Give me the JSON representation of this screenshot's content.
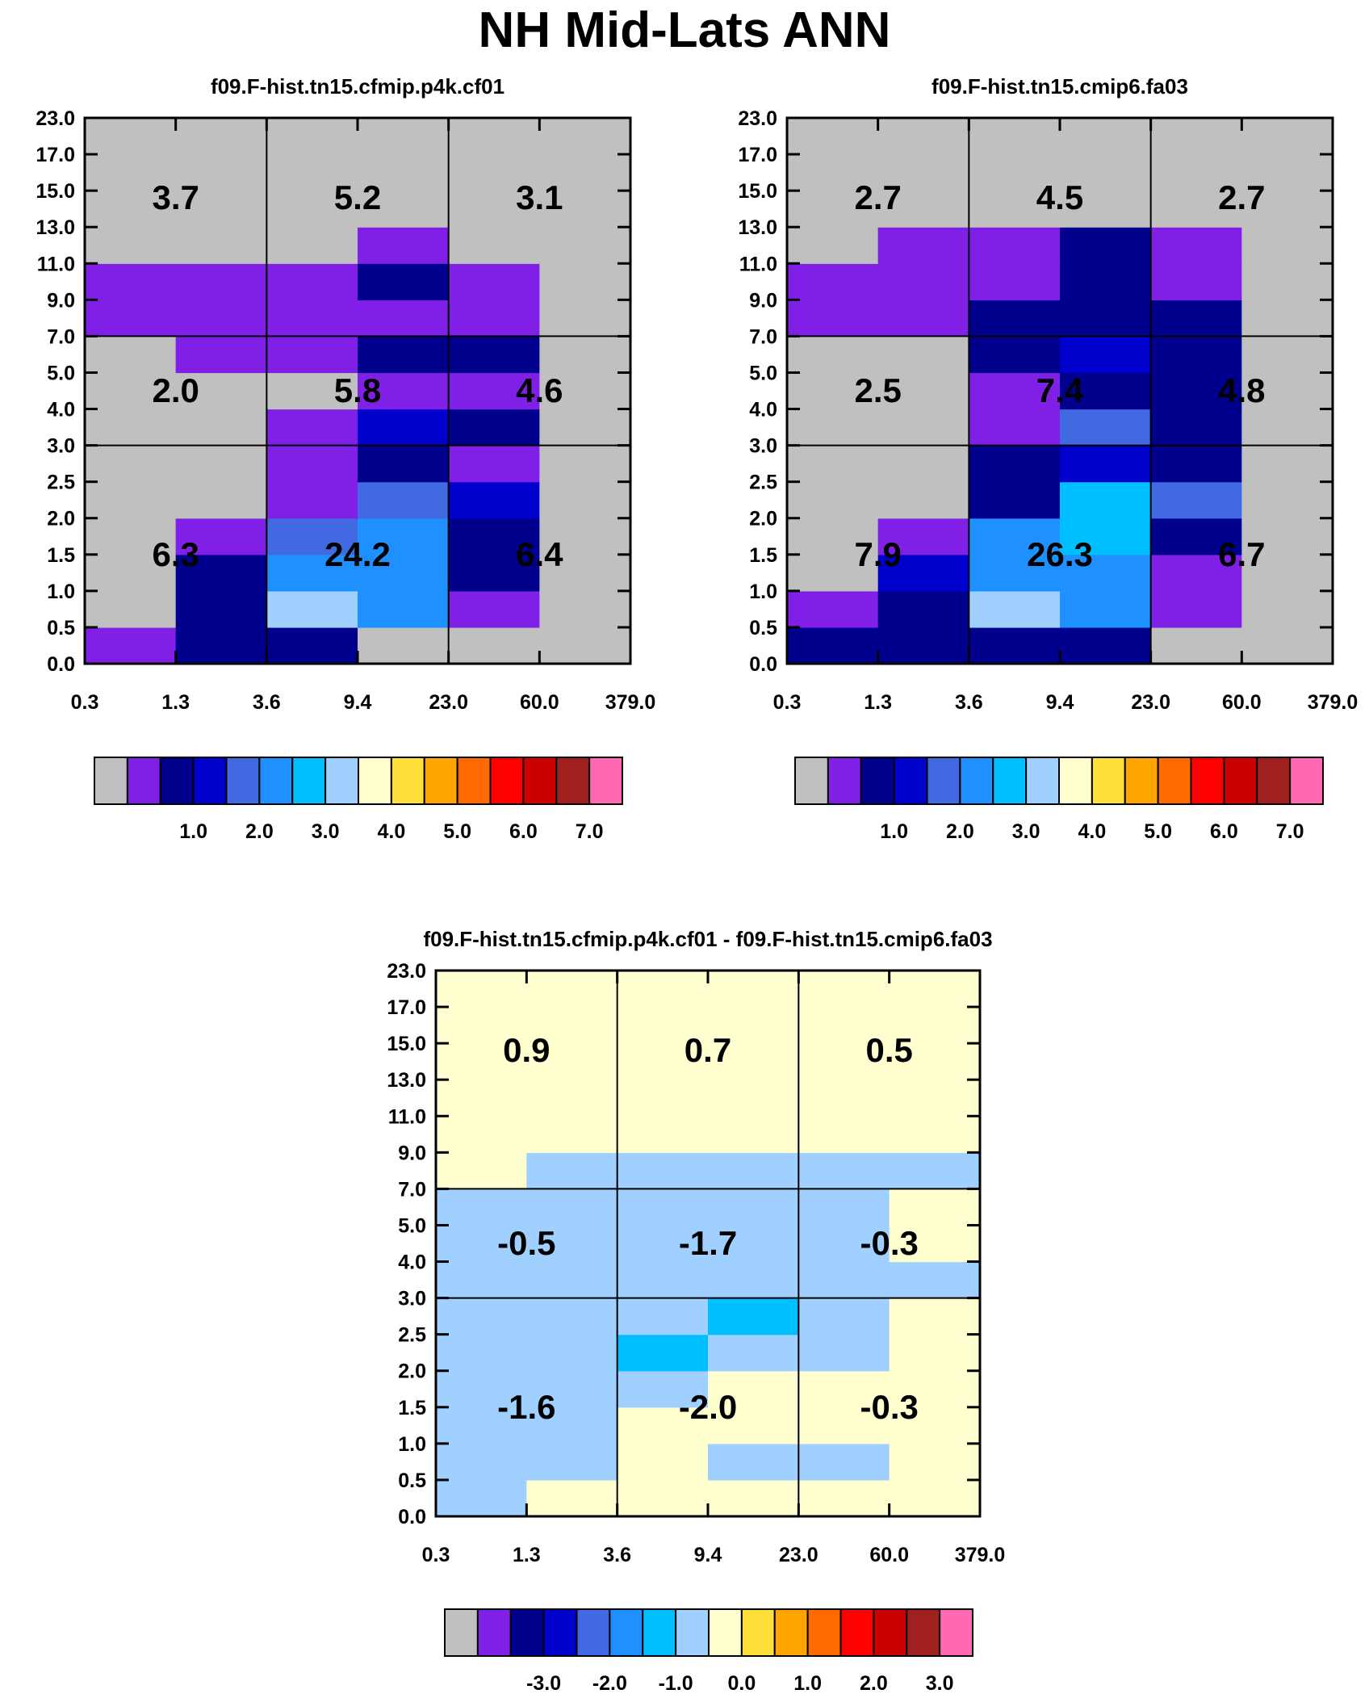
{
  "title": "NH Mid-Lats ANN",
  "colors": {
    "ctp_palette": [
      "#c0c0c0",
      "#8020e6",
      "#00008c",
      "#0000cd",
      "#4169e1",
      "#1e90ff",
      "#00bfff",
      "#a0d0ff",
      "#ffffd0",
      "#ffe03a",
      "#ffa500",
      "#ff6a00",
      "#ff0000",
      "#cc0000",
      "#a02020",
      "#ff69b4"
    ],
    "diff_palette": [
      "#c0c0c0",
      "#8020e6",
      "#00008c",
      "#0000cd",
      "#4169e1",
      "#1e90ff",
      "#00bfff",
      "#a0d0ff",
      "#ffffd0",
      "#ffe03a",
      "#ffa500",
      "#ff6a00",
      "#ff0000",
      "#cc0000",
      "#a02020",
      "#ff69b4"
    ]
  },
  "chart_data": [
    {
      "type": "heatmap",
      "title": "f09.F-hist.tn15.cfmip.p4k.cf01",
      "x_ticks": [
        "0.3",
        "1.3",
        "3.6",
        "9.4",
        "23.0",
        "60.0",
        "379.0"
      ],
      "y_ticks": [
        "0.0",
        "0.5",
        "1.0",
        "1.5",
        "2.0",
        "2.5",
        "3.0",
        "4.0",
        "5.0",
        "7.0",
        "9.0",
        "11.0",
        "13.0",
        "15.0",
        "17.0",
        "23.0"
      ],
      "class_grid_rows_bottom_to_top": [
        [
          1,
          2,
          2,
          0,
          0,
          0
        ],
        [
          0,
          2,
          7,
          5,
          1,
          0
        ],
        [
          0,
          2,
          5,
          5,
          2,
          0
        ],
        [
          0,
          1,
          4,
          5,
          2,
          0
        ],
        [
          0,
          0,
          1,
          4,
          3,
          0
        ],
        [
          0,
          0,
          1,
          2,
          1,
          0
        ],
        [
          0,
          0,
          1,
          3,
          2,
          0
        ],
        [
          0,
          0,
          0,
          1,
          1,
          0
        ],
        [
          0,
          1,
          1,
          2,
          2,
          0
        ],
        [
          1,
          1,
          1,
          1,
          1,
          0
        ],
        [
          1,
          1,
          1,
          2,
          1,
          0
        ],
        [
          0,
          0,
          0,
          1,
          0,
          0
        ],
        [
          0,
          0,
          0,
          0,
          0,
          0
        ],
        [
          0,
          0,
          0,
          0,
          0,
          0
        ],
        [
          0,
          0,
          0,
          0,
          0,
          0
        ]
      ],
      "region_values": [
        {
          "label": "3.7",
          "col": 0,
          "row": 0
        },
        {
          "label": "5.2",
          "col": 1,
          "row": 0
        },
        {
          "label": "3.1",
          "col": 2,
          "row": 0
        },
        {
          "label": "2.0",
          "col": 0,
          "row": 1
        },
        {
          "label": "5.8",
          "col": 1,
          "row": 1
        },
        {
          "label": "4.6",
          "col": 2,
          "row": 1
        },
        {
          "label": "6.3",
          "col": 0,
          "row": 2
        },
        {
          "label": "24.2",
          "col": 1,
          "row": 2
        },
        {
          "label": "6.4",
          "col": 2,
          "row": 2
        }
      ],
      "colorbar_labels": [
        "1.0",
        "2.0",
        "3.0",
        "4.0",
        "5.0",
        "6.0",
        "7.0"
      ],
      "xlabel": "",
      "ylabel": ""
    },
    {
      "type": "heatmap",
      "title": "f09.F-hist.tn15.cmip6.fa03",
      "x_ticks": [
        "0.3",
        "1.3",
        "3.6",
        "9.4",
        "23.0",
        "60.0",
        "379.0"
      ],
      "y_ticks": [
        "0.0",
        "0.5",
        "1.0",
        "1.5",
        "2.0",
        "2.5",
        "3.0",
        "4.0",
        "5.0",
        "7.0",
        "9.0",
        "11.0",
        "13.0",
        "15.0",
        "17.0",
        "23.0"
      ],
      "class_grid_rows_bottom_to_top": [
        [
          2,
          2,
          2,
          2,
          0,
          0
        ],
        [
          1,
          2,
          7,
          5,
          1,
          0
        ],
        [
          0,
          3,
          5,
          5,
          1,
          0
        ],
        [
          0,
          1,
          5,
          6,
          2,
          0
        ],
        [
          0,
          0,
          2,
          6,
          4,
          0
        ],
        [
          0,
          0,
          2,
          3,
          2,
          0
        ],
        [
          0,
          0,
          1,
          4,
          2,
          0
        ],
        [
          0,
          0,
          1,
          2,
          2,
          0
        ],
        [
          0,
          0,
          2,
          3,
          2,
          0
        ],
        [
          1,
          1,
          2,
          2,
          2,
          0
        ],
        [
          1,
          1,
          1,
          2,
          1,
          0
        ],
        [
          0,
          1,
          1,
          2,
          1,
          0
        ],
        [
          0,
          0,
          0,
          0,
          0,
          0
        ],
        [
          0,
          0,
          0,
          0,
          0,
          0
        ],
        [
          0,
          0,
          0,
          0,
          0,
          0
        ]
      ],
      "region_values": [
        {
          "label": "2.7",
          "col": 0,
          "row": 0
        },
        {
          "label": "4.5",
          "col": 1,
          "row": 0
        },
        {
          "label": "2.7",
          "col": 2,
          "row": 0
        },
        {
          "label": "2.5",
          "col": 0,
          "row": 1
        },
        {
          "label": "7.4",
          "col": 1,
          "row": 1
        },
        {
          "label": "4.8",
          "col": 2,
          "row": 1
        },
        {
          "label": "7.9",
          "col": 0,
          "row": 2
        },
        {
          "label": "26.3",
          "col": 1,
          "row": 2
        },
        {
          "label": "6.7",
          "col": 2,
          "row": 2
        }
      ],
      "colorbar_labels": [
        "1.0",
        "2.0",
        "3.0",
        "4.0",
        "5.0",
        "6.0",
        "7.0"
      ],
      "xlabel": "",
      "ylabel": ""
    },
    {
      "type": "heatmap",
      "title": "f09.F-hist.tn15.cfmip.p4k.cf01 - f09.F-hist.tn15.cmip6.fa03",
      "x_ticks": [
        "0.3",
        "1.3",
        "3.6",
        "9.4",
        "23.0",
        "60.0",
        "379.0"
      ],
      "y_ticks": [
        "0.0",
        "0.5",
        "1.0",
        "1.5",
        "2.0",
        "2.5",
        "3.0",
        "4.0",
        "5.0",
        "7.0",
        "9.0",
        "11.0",
        "13.0",
        "15.0",
        "17.0",
        "23.0"
      ],
      "class_grid_rows_bottom_to_top": [
        [
          7,
          8,
          8,
          8,
          8,
          8
        ],
        [
          7,
          7,
          8,
          7,
          7,
          8
        ],
        [
          7,
          7,
          8,
          8,
          8,
          8
        ],
        [
          7,
          7,
          7,
          8,
          8,
          8
        ],
        [
          7,
          7,
          6,
          7,
          7,
          8
        ],
        [
          7,
          7,
          7,
          6,
          7,
          8
        ],
        [
          7,
          7,
          7,
          7,
          7,
          7
        ],
        [
          7,
          7,
          7,
          7,
          7,
          8
        ],
        [
          7,
          7,
          7,
          7,
          7,
          8
        ],
        [
          8,
          7,
          7,
          7,
          7,
          7
        ],
        [
          8,
          8,
          8,
          8,
          8,
          8
        ],
        [
          8,
          8,
          8,
          8,
          8,
          8
        ],
        [
          8,
          8,
          8,
          8,
          8,
          8
        ],
        [
          8,
          8,
          8,
          8,
          8,
          8
        ],
        [
          8,
          8,
          8,
          8,
          8,
          8
        ]
      ],
      "region_values": [
        {
          "label": "0.9",
          "col": 0,
          "row": 0
        },
        {
          "label": "0.7",
          "col": 1,
          "row": 0
        },
        {
          "label": "0.5",
          "col": 2,
          "row": 0
        },
        {
          "label": "-0.5",
          "col": 0,
          "row": 1
        },
        {
          "label": "-1.7",
          "col": 1,
          "row": 1
        },
        {
          "label": "-0.3",
          "col": 2,
          "row": 1
        },
        {
          "label": "-1.6",
          "col": 0,
          "row": 2
        },
        {
          "label": "-2.0",
          "col": 1,
          "row": 2
        },
        {
          "label": "-0.3",
          "col": 2,
          "row": 2
        }
      ],
      "colorbar_labels": [
        "-3.0",
        "-2.0",
        "-1.0",
        "0.0",
        "1.0",
        "2.0",
        "3.0"
      ],
      "xlabel": "",
      "ylabel": ""
    }
  ]
}
